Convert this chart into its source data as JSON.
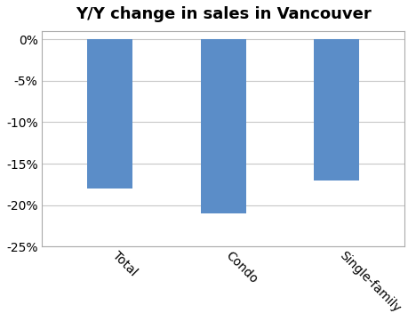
{
  "categories": [
    "Total",
    "Condo",
    "Single-family"
  ],
  "values": [
    -18,
    -21,
    -17
  ],
  "bar_color": "#5B8DC8",
  "title": "Y/Y change in sales in Vancouver",
  "title_fontsize": 13,
  "ylim": [
    -25,
    1
  ],
  "yticks": [
    0,
    -5,
    -10,
    -15,
    -20,
    -25
  ],
  "bar_width": 0.4,
  "background_color": "#ffffff",
  "grid_color": "#c8c8c8",
  "tick_label_fontsize": 10,
  "xlabel_rotation": -45,
  "border_color": "#aaaaaa"
}
